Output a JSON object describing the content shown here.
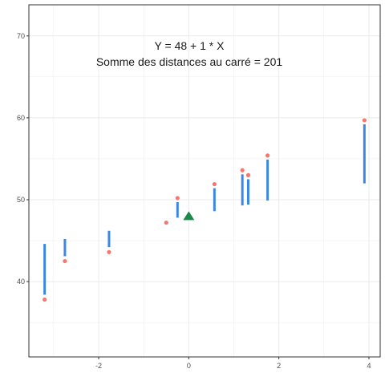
{
  "chart_data": {
    "type": "scatter",
    "title": "",
    "xlabel": "",
    "ylabel": "",
    "xlim": [
      -3.55,
      4.25
    ],
    "ylim": [
      30.8,
      73.8
    ],
    "x_ticks": [
      -2,
      0,
      2,
      4
    ],
    "x_tick_labels": [
      "-2",
      "0",
      "2",
      "4"
    ],
    "y_ticks": [
      40,
      50,
      60,
      70
    ],
    "y_tick_labels": [
      "40",
      "50",
      "60",
      "70"
    ],
    "grid": true,
    "annotations": [
      "Y = 48 + 1 * X",
      "Somme des distances au carré = 201"
    ],
    "points": [
      {
        "x": -3.2,
        "y": 37.8
      },
      {
        "x": -2.75,
        "y": 42.5
      },
      {
        "x": -1.77,
        "y": 43.6
      },
      {
        "x": -0.5,
        "y": 47.2
      },
      {
        "x": -0.25,
        "y": 50.2
      },
      {
        "x": 0.57,
        "y": 51.9
      },
      {
        "x": 1.19,
        "y": 53.6
      },
      {
        "x": 1.32,
        "y": 53.0
      },
      {
        "x": 1.75,
        "y": 55.4
      },
      {
        "x": 3.9,
        "y": 59.7
      }
    ],
    "residual_segments": [
      {
        "x": -3.2,
        "y_start": 38.4,
        "y_end": 44.6
      },
      {
        "x": -2.75,
        "y_start": 43.1,
        "y_end": 45.2
      },
      {
        "x": -1.77,
        "y_start": 44.2,
        "y_end": 46.2
      },
      {
        "x": -0.25,
        "y_start": 47.8,
        "y_end": 49.7
      },
      {
        "x": 0.57,
        "y_start": 48.6,
        "y_end": 51.4
      },
      {
        "x": 1.19,
        "y_start": 49.3,
        "y_end": 53.1
      },
      {
        "x": 1.32,
        "y_start": 49.4,
        "y_end": 52.5
      },
      {
        "x": 1.75,
        "y_start": 49.9,
        "y_end": 54.9
      },
      {
        "x": 3.9,
        "y_start": 52.0,
        "y_end": 59.2
      }
    ],
    "mean_point": {
      "x": 0.0,
      "y": 48.0
    },
    "colors": {
      "points": "#f8766d",
      "points_stroke": "#ffffff",
      "segments": "#3a87e6",
      "mean_marker": "#1a8a4a",
      "grid": "#ebebeb",
      "panel_border": "#333333",
      "tick_text": "#4d4d4d"
    }
  }
}
